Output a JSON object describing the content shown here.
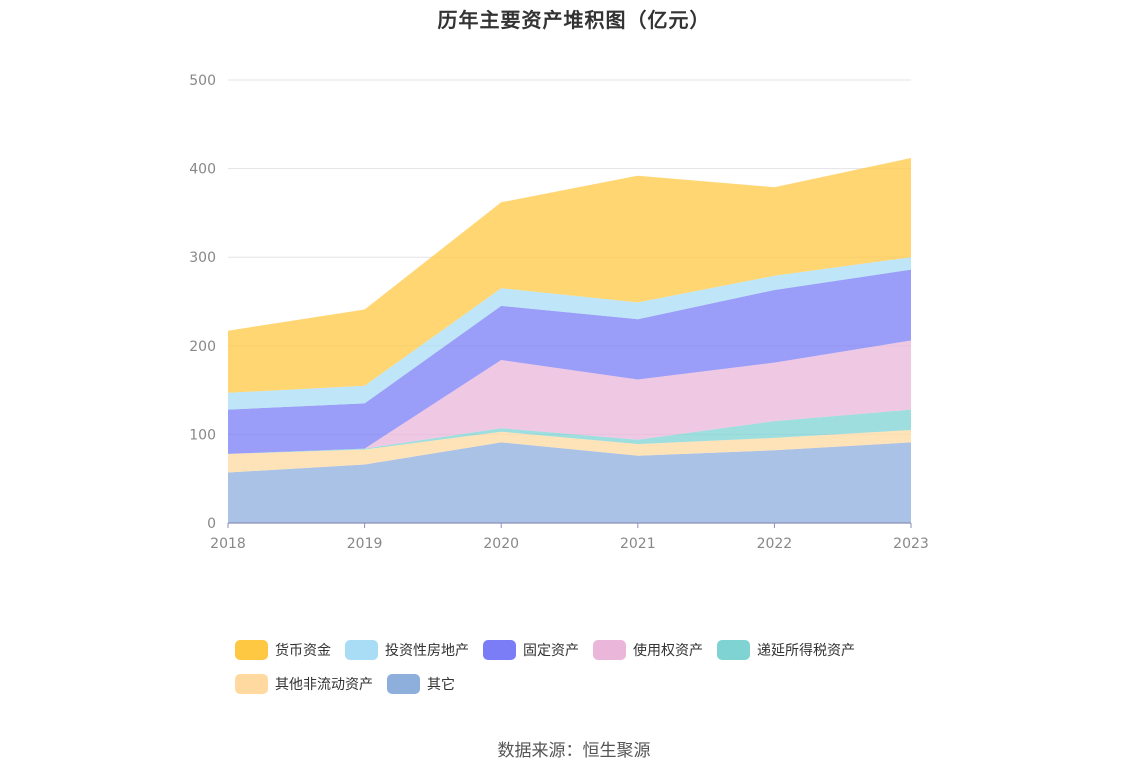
{
  "title": "历年主要资产堆积图（亿元）",
  "source_note": "数据来源：恒生聚源",
  "chart_data": {
    "type": "area",
    "stacked": true,
    "title": "历年主要资产堆积图（亿元）",
    "xlabel": "",
    "ylabel": "",
    "ylim": [
      0,
      500
    ],
    "y_ticks": [
      0,
      100,
      200,
      300,
      400,
      500
    ],
    "grid": true,
    "legend_position": "bottom",
    "categories": [
      "2018",
      "2019",
      "2020",
      "2021",
      "2022",
      "2023"
    ],
    "series": [
      {
        "name": "其它",
        "color": "#8eaedc",
        "values": [
          57,
          66,
          91,
          76,
          82,
          91
        ]
      },
      {
        "name": "其他非流动资产",
        "color": "#ffd9a0",
        "values": [
          21,
          17,
          12,
          13,
          14,
          14
        ]
      },
      {
        "name": "递延所得税资产",
        "color": "#7fd3d3",
        "values": [
          0,
          1,
          4,
          5,
          19,
          23
        ]
      },
      {
        "name": "使用权资产",
        "color": "#eab6da",
        "values": [
          0,
          0,
          77,
          68,
          66,
          78
        ]
      },
      {
        "name": "固定资产",
        "color": "#7a7df5",
        "values": [
          50,
          51,
          61,
          68,
          82,
          80
        ]
      },
      {
        "name": "投资性房地产",
        "color": "#a8ddf5",
        "values": [
          19,
          20,
          20,
          19,
          16,
          14
        ]
      },
      {
        "name": "货币资金",
        "color": "#ffc843",
        "values": [
          70,
          86,
          97,
          143,
          100,
          112
        ]
      }
    ],
    "legend_order": [
      "货币资金",
      "投资性房地产",
      "固定资产",
      "使用权资产",
      "递延所得税资产",
      "其他非流动资产",
      "其它"
    ]
  }
}
